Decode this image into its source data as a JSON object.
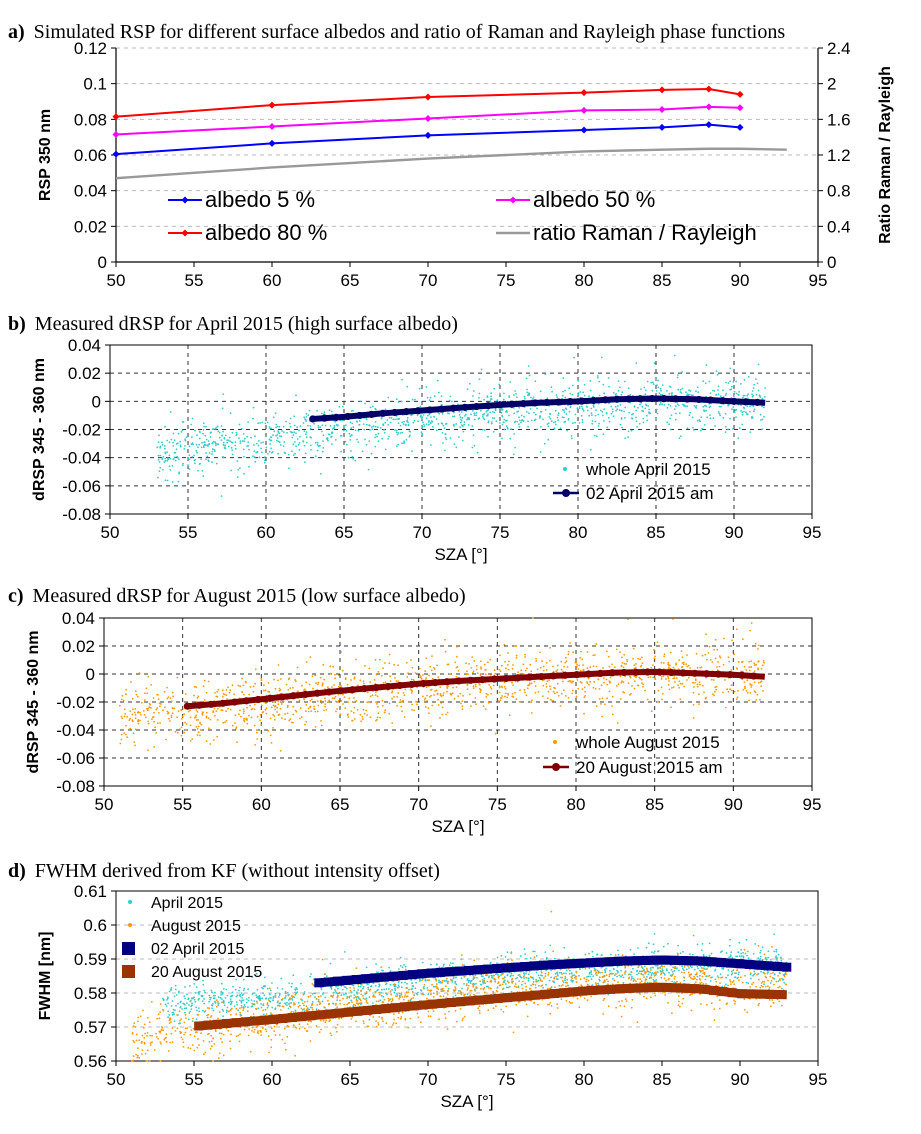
{
  "panels": [
    {
      "id": "a",
      "title_letter": "a)",
      "title_text": "Simulated RSP for different surface albedos and ratio of Raman and Rayleigh phase functions"
    },
    {
      "id": "b",
      "title_letter": "b)",
      "title_text": "Measured dRSP for April 2015 (high surface albedo)"
    },
    {
      "id": "c",
      "title_letter": "c)",
      "title_text": "Measured dRSP for August 2015 (low surface albedo)"
    },
    {
      "id": "d",
      "title_letter": "d)",
      "title_text": "FWHM derived from KF (without intensity offset)"
    }
  ],
  "chart_data": [
    {
      "panel": "a",
      "type": "line",
      "ylabel": "RSP 350 nm",
      "y2label": "Ratio Raman / Rayleigh",
      "xlim": [
        50,
        95
      ],
      "xticks": [
        "50",
        "55",
        "60",
        "65",
        "70",
        "75",
        "80",
        "85",
        "90",
        "95"
      ],
      "ylim": [
        0,
        0.12
      ],
      "yticks": [
        "0",
        "0.02",
        "0.04",
        "0.06",
        "0.08",
        "0.1",
        "0.12"
      ],
      "y2lim": [
        0,
        2.4
      ],
      "y2ticks": [
        "0",
        "0.4",
        "0.8",
        "1.2",
        "1.6",
        "2",
        "2.4"
      ],
      "grid": "horizontal dashed",
      "legend_position": "bottom-left",
      "series": [
        {
          "name": "albedo 5 %",
          "color": "#0000ff",
          "marker": "diamond",
          "axis": "left",
          "x": [
            50,
            60,
            70,
            80,
            85,
            88,
            90
          ],
          "y": [
            0.0605,
            0.0665,
            0.071,
            0.074,
            0.0755,
            0.077,
            0.0755
          ]
        },
        {
          "name": "albedo 50 %",
          "color": "#ff00ff",
          "marker": "diamond",
          "axis": "left",
          "x": [
            50,
            60,
            70,
            80,
            85,
            88,
            90
          ],
          "y": [
            0.0715,
            0.076,
            0.0805,
            0.085,
            0.0855,
            0.087,
            0.0865
          ]
        },
        {
          "name": "albedo 80 %",
          "color": "#ff0000",
          "marker": "diamond",
          "axis": "left",
          "x": [
            50,
            60,
            70,
            80,
            85,
            88,
            90
          ],
          "y": [
            0.0815,
            0.088,
            0.0925,
            0.095,
            0.0965,
            0.097,
            0.094
          ]
        },
        {
          "name": "ratio Raman / Rayleigh",
          "color": "#999999",
          "marker": "none",
          "axis": "right",
          "x": [
            50,
            55,
            60,
            65,
            70,
            75,
            80,
            85,
            88,
            90,
            93
          ],
          "y": [
            0.94,
            1.0,
            1.06,
            1.11,
            1.16,
            1.2,
            1.24,
            1.26,
            1.27,
            1.27,
            1.26
          ]
        }
      ]
    },
    {
      "panel": "b",
      "type": "scatter",
      "ylabel": "dRSP 345 - 360 nm",
      "xlabel": "SZA [°]",
      "xlim": [
        50,
        95
      ],
      "xticks": [
        "50",
        "55",
        "60",
        "65",
        "70",
        "75",
        "80",
        "85",
        "90",
        "95"
      ],
      "ylim": [
        -0.08,
        0.04
      ],
      "yticks": [
        "-0.08",
        "-0.06",
        "-0.04",
        "-0.02",
        "0",
        "0.02",
        "0.04"
      ],
      "grid": "dashed both",
      "legend_position": "bottom-right",
      "series": [
        {
          "name": "whole April 2015",
          "color": "#33cccc",
          "marker": "dot",
          "x_range": [
            53,
            92
          ],
          "trend_x": [
            53,
            60,
            65,
            70,
            75,
            80,
            85,
            90,
            92
          ],
          "trend_y": [
            -0.038,
            -0.028,
            -0.02,
            -0.013,
            -0.008,
            -0.004,
            -0.001,
            -0.001,
            -0.002
          ],
          "spread": 0.009
        },
        {
          "name": "02 April 2015 am",
          "color": "#000066",
          "marker": "circle",
          "x": [
            63,
            65,
            67.5,
            70,
            72.5,
            75,
            77.5,
            80,
            82.5,
            85,
            87.5,
            90,
            92
          ],
          "y": [
            -0.0125,
            -0.011,
            -0.0085,
            -0.0065,
            -0.0045,
            -0.0025,
            -0.001,
            0.0,
            0.0015,
            0.002,
            0.0015,
            0.0,
            -0.001
          ]
        }
      ]
    },
    {
      "panel": "c",
      "type": "scatter",
      "ylabel": "dRSP 345 - 360 nm",
      "xlabel": "SZA [°]",
      "xlim": [
        50,
        95
      ],
      "xticks": [
        "50",
        "55",
        "60",
        "65",
        "70",
        "75",
        "80",
        "85",
        "90",
        "95"
      ],
      "ylim": [
        -0.08,
        0.04
      ],
      "yticks": [
        "-0.08",
        "-0.06",
        "-0.04",
        "-0.02",
        "0",
        "0.02",
        "0.04"
      ],
      "grid": "dashed both",
      "legend_position": "bottom-right",
      "series": [
        {
          "name": "whole August 2015",
          "color": "#ff9900",
          "marker": "dot",
          "x_range": [
            51,
            92
          ],
          "trend_x": [
            51,
            55,
            60,
            65,
            70,
            75,
            80,
            85,
            90,
            92
          ],
          "trend_y": [
            -0.03,
            -0.027,
            -0.022,
            -0.016,
            -0.01,
            -0.006,
            -0.002,
            0.0,
            -0.001,
            -0.002
          ],
          "spread": 0.01
        },
        {
          "name": "20 August 2015 am",
          "color": "#800000",
          "marker": "circle",
          "x": [
            55.3,
            57.5,
            60,
            62.5,
            65,
            67.5,
            70,
            72.5,
            75,
            77.5,
            80,
            82.5,
            85,
            87.5,
            90,
            92
          ],
          "y": [
            -0.023,
            -0.021,
            -0.018,
            -0.015,
            -0.012,
            -0.0095,
            -0.007,
            -0.005,
            -0.0035,
            -0.002,
            -0.0005,
            0.001,
            0.0015,
            0.0005,
            -0.0005,
            -0.002
          ]
        }
      ]
    },
    {
      "panel": "d",
      "type": "scatter",
      "ylabel": "FWHM [nm]",
      "xlabel": "SZA [°]",
      "xlim": [
        50,
        95
      ],
      "xticks": [
        "50",
        "55",
        "60",
        "65",
        "70",
        "75",
        "80",
        "85",
        "90",
        "95"
      ],
      "ylim": [
        0.56,
        0.61
      ],
      "yticks": [
        "0.56",
        "0.57",
        "0.58",
        "0.59",
        "0.6",
        "0.61"
      ],
      "grid": "horizontal dashed",
      "legend_position": "top-left",
      "series": [
        {
          "name": "April 2015",
          "color": "#33cccc",
          "marker": "dot",
          "x_range": [
            53,
            93
          ],
          "trend_x": [
            53,
            60,
            65,
            70,
            75,
            80,
            85,
            90,
            93
          ],
          "trend_y": [
            0.5765,
            0.579,
            0.5815,
            0.5835,
            0.585,
            0.5865,
            0.5875,
            0.5885,
            0.5875
          ],
          "spread": 0.0025
        },
        {
          "name": "August 2015",
          "color": "#ff9900",
          "marker": "dot",
          "x_range": [
            51,
            93
          ],
          "trend_x": [
            51,
            55,
            60,
            65,
            70,
            75,
            80,
            85,
            90,
            93
          ],
          "trend_y": [
            0.566,
            0.569,
            0.5725,
            0.576,
            0.5785,
            0.581,
            0.583,
            0.5835,
            0.5825,
            0.582
          ],
          "spread": 0.0035
        },
        {
          "name": "02 April 2015",
          "color": "#000080",
          "marker": "square",
          "x": [
            63,
            65,
            67.5,
            70,
            72.5,
            75,
            77.5,
            80,
            82.5,
            85,
            87.5,
            90,
            93
          ],
          "y": [
            0.583,
            0.5838,
            0.5848,
            0.5858,
            0.5866,
            0.5874,
            0.5882,
            0.5888,
            0.5894,
            0.5897,
            0.5894,
            0.5886,
            0.5876
          ]
        },
        {
          "name": "20 August 2015",
          "color": "#993300",
          "marker": "square",
          "x": [
            55.3,
            57.5,
            60,
            62.5,
            65,
            67.5,
            70,
            72.5,
            75,
            77.5,
            80,
            82.5,
            85,
            87.5,
            90,
            93
          ],
          "y": [
            0.5703,
            0.5712,
            0.5722,
            0.5733,
            0.5744,
            0.5755,
            0.5766,
            0.5776,
            0.5786,
            0.5796,
            0.5806,
            0.5813,
            0.5817,
            0.5812,
            0.5798,
            0.5795
          ]
        }
      ]
    }
  ]
}
